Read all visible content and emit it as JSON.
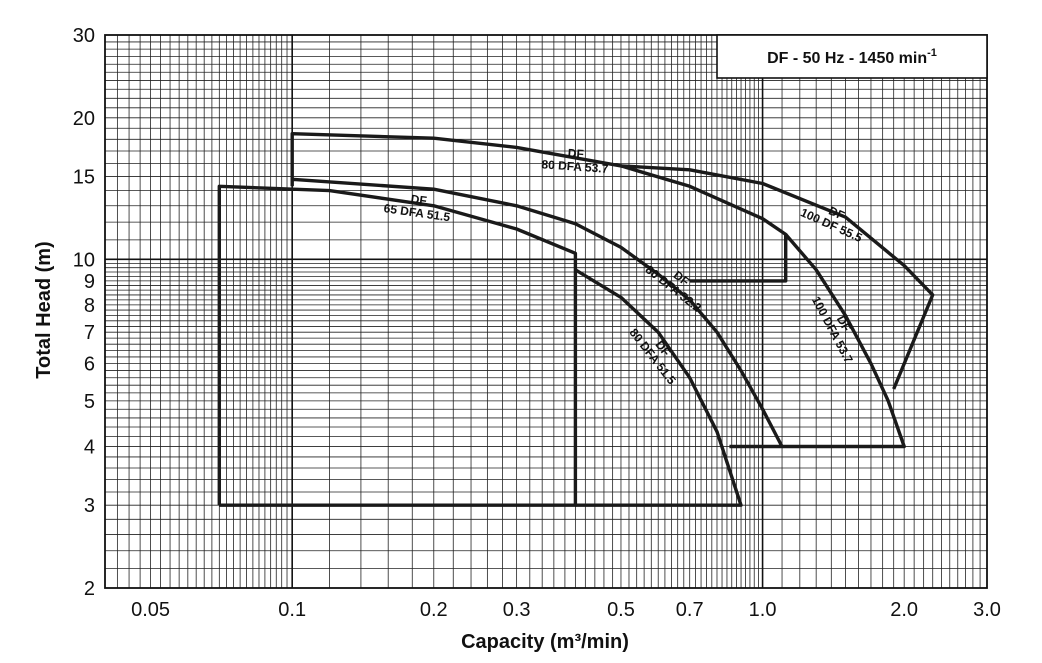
{
  "chart_data": {
    "type": "line",
    "title": "DF - 50 Hz - 1450 min-1",
    "title_main": "DF - 50 Hz - 1450 min",
    "title_sup": "-1",
    "xlabel": "Capacity  (m³/min)",
    "ylabel": "Total Head  (m)",
    "x_scale": "log",
    "y_scale": "log",
    "xlim": [
      0.04,
      3.0
    ],
    "ylim": [
      2,
      30
    ],
    "grid": true,
    "x_ticks": [
      "0.05",
      "0.1",
      "0.2",
      "0.3",
      "0.5",
      "0.7",
      "1.0",
      "2.0",
      "3.0"
    ],
    "x_tick_values": [
      0.05,
      0.1,
      0.2,
      0.3,
      0.5,
      0.7,
      1.0,
      2.0,
      3.0
    ],
    "y_ticks": [
      "2",
      "3",
      "4",
      "5",
      "6",
      "7",
      "8",
      "9",
      "10",
      "15",
      "20",
      "30"
    ],
    "y_tick_values": [
      2,
      3,
      4,
      5,
      6,
      7,
      8,
      9,
      10,
      15,
      20,
      30
    ],
    "series": [
      {
        "label_line1": "DF",
        "label_line2": "65 DFA 51.5",
        "points": [
          [
            0.07,
            3.0
          ],
          [
            0.07,
            14.3
          ],
          [
            0.12,
            14.0
          ],
          [
            0.2,
            13.0
          ],
          [
            0.3,
            11.6
          ],
          [
            0.4,
            10.3
          ],
          [
            0.4,
            3.0
          ],
          [
            0.07,
            3.0
          ]
        ]
      },
      {
        "label_line1": "DF",
        "label_line2": "80 DFA 51.5",
        "points": [
          [
            0.4,
            9.5
          ],
          [
            0.5,
            8.3
          ],
          [
            0.6,
            7.0
          ],
          [
            0.7,
            5.6
          ],
          [
            0.8,
            4.3
          ],
          [
            0.9,
            3.0
          ],
          [
            0.4,
            3.0
          ]
        ]
      },
      {
        "label_line1": "DF",
        "label_line2": "80 DFA 52.2",
        "points": [
          [
            0.1,
            14.3
          ],
          [
            0.1,
            14.8
          ],
          [
            0.2,
            14.1
          ],
          [
            0.3,
            13.0
          ],
          [
            0.4,
            11.9
          ],
          [
            0.5,
            10.6
          ],
          [
            0.6,
            9.3
          ],
          [
            0.7,
            8.2
          ],
          [
            0.8,
            7.0
          ],
          [
            0.9,
            5.8
          ],
          [
            1.0,
            4.8
          ],
          [
            1.1,
            4.0
          ],
          [
            0.85,
            4.0
          ]
        ]
      },
      {
        "label_line1": "DF",
        "label_line2": "80 DFA 53.7",
        "points": [
          [
            0.1,
            14.8
          ],
          [
            0.1,
            18.5
          ],
          [
            0.2,
            18.1
          ],
          [
            0.3,
            17.3
          ],
          [
            0.5,
            15.8
          ],
          [
            0.7,
            14.3
          ],
          [
            1.0,
            12.2
          ],
          [
            1.12,
            11.3
          ],
          [
            1.12,
            9.0
          ],
          [
            0.7,
            9.0
          ]
        ]
      },
      {
        "label_line1": "DF",
        "label_line2": "100 DF 55.5",
        "points": [
          [
            0.5,
            15.8
          ],
          [
            0.7,
            15.5
          ],
          [
            1.0,
            14.5
          ],
          [
            1.5,
            12.3
          ],
          [
            2.0,
            9.7
          ],
          [
            2.3,
            8.4
          ],
          [
            1.9,
            5.3
          ]
        ]
      },
      {
        "label_line1": "DF",
        "label_line2": "100 DFA 53.7",
        "points": [
          [
            1.12,
            11.3
          ],
          [
            1.3,
            9.5
          ],
          [
            1.5,
            7.6
          ],
          [
            1.7,
            6.0
          ],
          [
            1.85,
            5.0
          ],
          [
            2.0,
            4.0
          ],
          [
            1.1,
            4.0
          ]
        ]
      }
    ]
  }
}
